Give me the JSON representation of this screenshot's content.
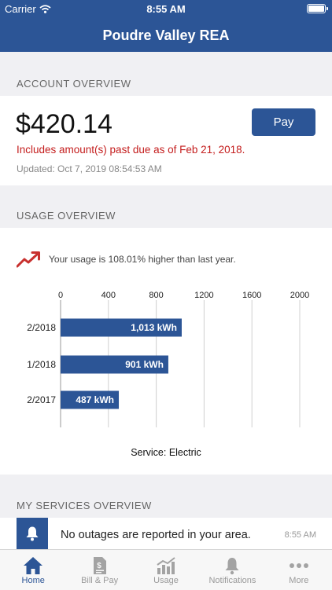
{
  "status_bar": {
    "carrier": "Carrier",
    "time": "8:55 AM"
  },
  "header": {
    "title": "Poudre Valley REA"
  },
  "account_overview": {
    "section_title": "ACCOUNT OVERVIEW",
    "balance": "$420.14",
    "pay_label": "Pay",
    "past_due_notice": "Includes amount(s) past due as of Feb 21, 2018.",
    "updated": "Updated: Oct 7, 2019 08:54:53 AM"
  },
  "usage_overview": {
    "section_title": "USAGE OVERVIEW",
    "trend_text": "Your usage is 108.01% higher than last year.",
    "service_label": "Service: Electric"
  },
  "chart_data": {
    "type": "bar",
    "orientation": "horizontal",
    "categories": [
      "2/2018",
      "1/2018",
      "2/2017"
    ],
    "values": [
      1013,
      901,
      487
    ],
    "value_labels": [
      "1,013 kWh",
      "901 kWh",
      "487 kWh"
    ],
    "ticks": [
      "0",
      "400",
      "800",
      "1200",
      "1600",
      "2000"
    ],
    "xlim": [
      0,
      2000
    ],
    "grid": true,
    "bar_color": "#2c5596"
  },
  "services_overview": {
    "section_title": "MY SERVICES OVERVIEW",
    "notification_text": "No outages are reported in your area.",
    "notification_time": "8:55 AM"
  },
  "tabs": [
    {
      "label": "Home",
      "icon": "home-icon"
    },
    {
      "label": "Bill & Pay",
      "icon": "bill-icon"
    },
    {
      "label": "Usage",
      "icon": "usage-chart-icon"
    },
    {
      "label": "Notifications",
      "icon": "bell-icon"
    },
    {
      "label": "More",
      "icon": "more-dots-icon"
    }
  ],
  "colors": {
    "brand": "#2c5596",
    "alert": "#c41d1d",
    "trend": "#c8312f"
  }
}
